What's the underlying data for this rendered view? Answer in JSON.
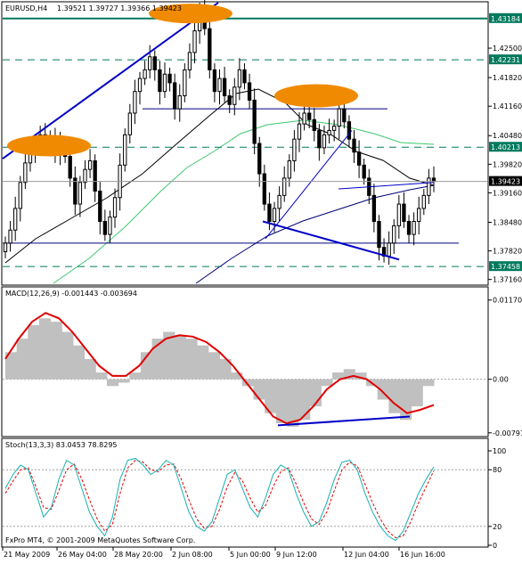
{
  "header": {
    "symbol": "EURUSD,H4",
    "ohlc": "1.39521 1.39727 1.39366 1.39423"
  },
  "copyright": "FxPro MT4, © 2001-2009 MetaQuotes Software Corp.",
  "colors": {
    "background": "#ffffff",
    "candle": "#000000",
    "trend_line": "#0000c8",
    "horizontal_line": "#000080",
    "level_line": "#007a5e",
    "oval": "#f08a00",
    "ma_black": "#000000",
    "ma_green": "#3dc86e",
    "ma_navy": "#00007a",
    "macd_hist": "#c0c0c0",
    "macd_signal": "#e00000",
    "stoch_main": "#18b0b0",
    "stoch_signal": "#e00000",
    "price_marker": "#000000"
  },
  "chart_data": [
    {
      "type": "candlestick",
      "panel": "price",
      "title": "EURUSD,H4",
      "x_labels": [
        "21 May 2009",
        "26 May 04:00",
        "28 May 20:00",
        "2 Jun 08:00",
        "5 Jun 00:00",
        "9 Jun 12:00",
        "12 Jun 04:00",
        "16 Jun 16:00"
      ],
      "y_ticks": [
        "1.42500",
        "1.41820",
        "1.41160",
        "1.40480",
        "1.39820",
        "1.39160",
        "1.38480",
        "1.37820",
        "1.37160"
      ],
      "ylim": [
        1.3705,
        1.4355
      ],
      "close_series": [
        1.38,
        1.383,
        1.388,
        1.394,
        1.3985,
        1.401,
        1.4035,
        1.405,
        1.402,
        1.4045,
        1.401,
        1.403,
        1.4,
        1.395,
        1.389,
        1.394,
        1.397,
        1.399,
        1.392,
        1.385,
        1.382,
        1.386,
        1.3905,
        1.398,
        1.405,
        1.41,
        1.415,
        1.418,
        1.42,
        1.423,
        1.42,
        1.415,
        1.419,
        1.417,
        1.411,
        1.414,
        1.42,
        1.424,
        1.429,
        1.434,
        1.4295,
        1.42,
        1.415,
        1.418,
        1.414,
        1.412,
        1.416,
        1.42,
        1.417,
        1.413,
        1.403,
        1.396,
        1.389,
        1.385,
        1.388,
        1.391,
        1.395,
        1.399,
        1.404,
        1.4075,
        1.41,
        1.4085,
        1.406,
        1.402,
        1.405,
        1.406,
        1.407,
        1.411,
        1.408,
        1.404,
        1.401,
        1.398,
        1.395,
        1.391,
        1.385,
        1.379,
        1.377,
        1.38,
        1.384,
        1.389,
        1.385,
        1.382,
        1.385,
        1.388,
        1.391,
        1.395,
        1.39423
      ],
      "levels": [
        {
          "label": "1.43184",
          "value": 1.43184
        },
        {
          "label": "1.42231",
          "value": 1.42231
        },
        {
          "label": "1.40213",
          "value": 1.40213
        },
        {
          "label": "1.37458",
          "value": 1.37458
        }
      ],
      "current_price": "1.39423",
      "annotations": [
        "support line 1.3800",
        "resistance line 1.4110",
        "three highlighted peaks (head and shoulders)",
        "trendlines"
      ]
    },
    {
      "type": "histogram+line",
      "panel": "macd",
      "title": "MACD(12,26,9) -0.001443 -0.003694",
      "y_ticks": [
        "0.011702",
        "0.00",
        "-0.00791"
      ],
      "ylim": [
        -0.0082,
        0.0118
      ],
      "histogram": [
        0.004,
        0.006,
        0.008,
        0.009,
        0.0085,
        0.007,
        0.005,
        0.003,
        0.001,
        -0.001,
        -0.0005,
        0.001,
        0.004,
        0.006,
        0.007,
        0.0065,
        0.006,
        0.005,
        0.004,
        0.003,
        0.001,
        -0.001,
        -0.003,
        -0.005,
        -0.0065,
        -0.007,
        -0.006,
        -0.004,
        -0.001,
        0.001,
        0.0015,
        0.001,
        -0.001,
        -0.003,
        -0.005,
        -0.006,
        -0.004,
        -0.001
      ],
      "signal": [
        0.003,
        0.006,
        0.0085,
        0.0098,
        0.009,
        0.007,
        0.0045,
        0.002,
        0.0005,
        0.0005,
        0.002,
        0.0045,
        0.006,
        0.0065,
        0.0063,
        0.0055,
        0.004,
        0.002,
        -0.0005,
        -0.003,
        -0.0055,
        -0.0065,
        -0.006,
        -0.004,
        -0.0015,
        0.0,
        0.0005,
        0.0,
        -0.0015,
        -0.0035,
        -0.005,
        -0.0045,
        -0.0038
      ]
    },
    {
      "type": "line",
      "panel": "stochastic",
      "title": "Stoch(13,3,3) 83.0453 78.8295",
      "y_ticks": [
        "100",
        "80",
        "20",
        "0"
      ],
      "ylim": [
        0,
        100
      ],
      "main": [
        60,
        75,
        85,
        80,
        55,
        30,
        40,
        70,
        90,
        85,
        60,
        35,
        20,
        10,
        30,
        70,
        90,
        92,
        85,
        75,
        80,
        90,
        85,
        60,
        35,
        20,
        15,
        25,
        50,
        75,
        80,
        60,
        40,
        30,
        50,
        75,
        85,
        80,
        55,
        35,
        20,
        25,
        45,
        70,
        88,
        90,
        80,
        55,
        35,
        20,
        10,
        5,
        15,
        35,
        55,
        70,
        83
      ],
      "signal": [
        55,
        68,
        80,
        82,
        62,
        40,
        38,
        58,
        80,
        86,
        70,
        48,
        28,
        15,
        22,
        55,
        82,
        90,
        88,
        80,
        78,
        85,
        86,
        70,
        48,
        28,
        18,
        20,
        38,
        62,
        77,
        68,
        50,
        35,
        42,
        62,
        78,
        82,
        65,
        45,
        28,
        22,
        35,
        58,
        80,
        88,
        84,
        65,
        45,
        28,
        15,
        8,
        10,
        25,
        45,
        62,
        79
      ]
    }
  ]
}
